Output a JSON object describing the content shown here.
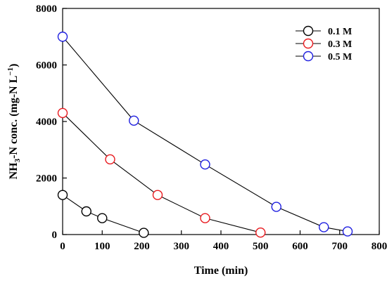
{
  "chart_data": {
    "type": "line",
    "xlabel": "Time (min)",
    "ylabel": {
      "main": "NH",
      "sub": "3",
      "rest": "-N conc. (mg-N L",
      "sup": "−1",
      "close": ")"
    },
    "xlim": [
      0,
      800
    ],
    "ylim": [
      0,
      8000
    ],
    "xticks": [
      0,
      100,
      200,
      300,
      400,
      500,
      600,
      700,
      800
    ],
    "yticks": [
      0,
      2000,
      4000,
      6000,
      8000
    ],
    "grid": false,
    "legend_position": "top-right",
    "series": [
      {
        "name": "0.1 M",
        "color": "#000000",
        "x": [
          0,
          60,
          100,
          205
        ],
        "y": [
          1400,
          820,
          580,
          60
        ]
      },
      {
        "name": "0.3 M",
        "color": "#e8191e",
        "x": [
          0,
          120,
          240,
          360,
          500
        ],
        "y": [
          4300,
          2660,
          1400,
          580,
          70
        ]
      },
      {
        "name": "0.5 M",
        "color": "#1f1fe0",
        "x": [
          0,
          180,
          360,
          540,
          660,
          720
        ],
        "y": [
          7000,
          4030,
          2480,
          980,
          260,
          110
        ]
      }
    ]
  }
}
